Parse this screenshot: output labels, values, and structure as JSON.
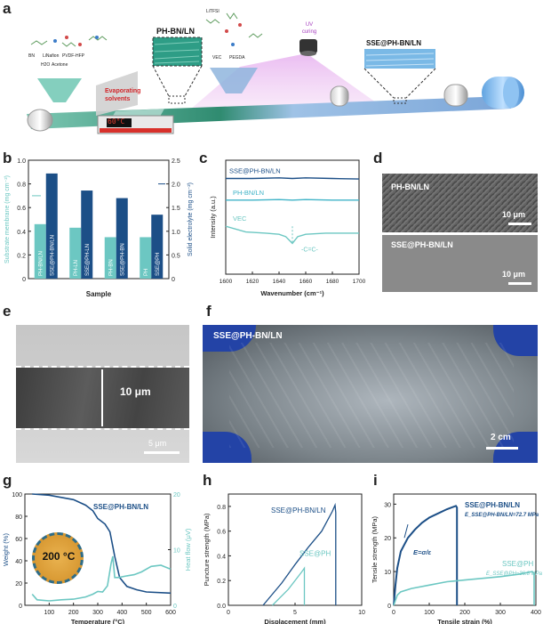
{
  "panels": {
    "a": {
      "label": "a",
      "materials": [
        "BN",
        "LiNafion",
        "PVDF-HFP",
        "H2O",
        "Acetone"
      ],
      "step1": "Evaporating solvents",
      "temp_display": "60°C",
      "intermediate": "PH-BN/LN",
      "additives": [
        "LiTFSI",
        "VEC",
        "PEGDA"
      ],
      "uv": "UV curing",
      "product": "SSE@PH-BN/LN"
    },
    "b": {
      "label": "b"
    },
    "c": {
      "label": "c"
    },
    "d": {
      "label": "d",
      "top_label": "PH-BN/LN",
      "top_scale": "10 μm",
      "bottom_label": "SSE@PH-BN/LN",
      "bottom_scale": "10 μm"
    },
    "e": {
      "label": "e",
      "thickness": "10 μm",
      "scale": "5 μm"
    },
    "f": {
      "label": "f",
      "title": "SSE@PH-BN/LN",
      "scale": "2 cm"
    },
    "g": {
      "label": "g",
      "inset": "200 °C"
    },
    "h": {
      "label": "h"
    },
    "i": {
      "label": "i",
      "eq": "E=σ/ε"
    }
  },
  "chart_data": [
    {
      "panel": "b",
      "type": "bar",
      "xlabel": "Sample",
      "ylabel_left": "Substrate membrane (mg cm⁻²)",
      "ylabel_right": "Solid electrolyte (mg cm⁻²)",
      "ylim_left": [
        0,
        1.0
      ],
      "ylim_right": [
        0,
        2.5
      ],
      "yticks_left": [
        "0",
        "0.2",
        "0.4",
        "0.6",
        "0.8",
        "1.0"
      ],
      "yticks_right": [
        "0",
        "0.5",
        "1.0",
        "1.5",
        "2.0",
        "2.5"
      ],
      "categories": [
        "PH-BN/LN",
        "PH-LN",
        "PH-BN",
        "PH"
      ],
      "series": [
        {
          "axis": "left",
          "color": "#6cc7c2",
          "values": [
            0.46,
            0.43,
            0.35,
            0.35
          ],
          "labels": [
            "PH-BN/LN",
            "PH-LN",
            "PH-BN",
            "PH"
          ]
        },
        {
          "axis": "right",
          "color": "#1c4f87",
          "values": [
            2.22,
            1.86,
            1.7,
            1.35
          ],
          "labels": [
            "SSE@PH-BN/LN",
            "SSE@PH-LN",
            "SSE@PH-BN",
            "SSE@PH"
          ]
        }
      ]
    },
    {
      "panel": "c",
      "type": "line",
      "xlabel": "Wavenumber (cm⁻¹)",
      "ylabel": "Intensity (a.u.)",
      "xlim": [
        1600,
        1700
      ],
      "xticks": [
        "1600",
        "1620",
        "1640",
        "1660",
        "1680",
        "1700"
      ],
      "annotation": "-C=C-",
      "series": [
        {
          "name": "SSE@PH-BN/LN",
          "color": "#1c4f87",
          "x": [
            1600,
            1620,
            1640,
            1650,
            1660,
            1680,
            1700
          ],
          "y": [
            0.84,
            0.84,
            0.845,
            0.84,
            0.845,
            0.84,
            0.835
          ]
        },
        {
          "name": "PH-BN/LN",
          "color": "#3fb3c7",
          "x": [
            1600,
            1620,
            1640,
            1650,
            1660,
            1680,
            1700
          ],
          "y": [
            0.65,
            0.65,
            0.655,
            0.65,
            0.655,
            0.65,
            0.65
          ]
        },
        {
          "name": "VEC",
          "color": "#6cc7c2",
          "x": [
            1600,
            1615,
            1630,
            1640,
            1645,
            1650,
            1654,
            1660,
            1675,
            1690,
            1700
          ],
          "y": [
            0.42,
            0.37,
            0.36,
            0.35,
            0.33,
            0.27,
            0.33,
            0.35,
            0.36,
            0.36,
            0.36
          ]
        }
      ]
    },
    {
      "panel": "g",
      "type": "line",
      "xlabel": "Temperature (°C)",
      "ylabel_left": "Weight (%)",
      "ylabel_right": "Heat flow (μV)",
      "xlim": [
        0,
        600
      ],
      "ylim_left": [
        0,
        100
      ],
      "ylim_right": [
        0,
        20
      ],
      "xticks": [
        "100",
        "200",
        "300",
        "400",
        "500",
        "600"
      ],
      "yticks_left": [
        "0",
        "20",
        "40",
        "60",
        "80",
        "100"
      ],
      "yticks_right": [
        "0",
        "10",
        "20"
      ],
      "series": [
        {
          "name": "SSE@PH-BN/LN",
          "axis": "left",
          "color": "#1c4f87",
          "x": [
            30,
            100,
            200,
            250,
            280,
            300,
            330,
            350,
            370,
            390,
            420,
            460,
            500,
            600
          ],
          "y": [
            100,
            99,
            95,
            90,
            85,
            78,
            73,
            66,
            44,
            25,
            17,
            14,
            12,
            11
          ]
        },
        {
          "axis": "right",
          "color": "#6cc7c2",
          "x": [
            30,
            50,
            100,
            150,
            200,
            250,
            280,
            300,
            320,
            340,
            355,
            362,
            370,
            385,
            420,
            450,
            480,
            520,
            560,
            600
          ],
          "y": [
            2.0,
            1.0,
            0.8,
            1.0,
            1.1,
            1.5,
            2.0,
            2.5,
            2.4,
            3.5,
            7.5,
            8.8,
            5.0,
            5.0,
            5.3,
            5.5,
            6.0,
            7.0,
            7.2,
            6.5
          ]
        }
      ]
    },
    {
      "panel": "h",
      "type": "line",
      "xlabel": "Displacement (mm)",
      "ylabel": "Puncture strength (MPa)",
      "xlim": [
        0,
        10
      ],
      "ylim": [
        0,
        0.9
      ],
      "xticks": [
        "0",
        "5",
        "10"
      ],
      "yticks": [
        "0.0",
        "0.2",
        "0.4",
        "0.6",
        "0.8"
      ],
      "series": [
        {
          "name": "SSE@PH-BN/LN",
          "color": "#1c4f87",
          "x": [
            2.6,
            4.0,
            5.0,
            6.0,
            7.0,
            7.8,
            8.0,
            8.05,
            8.05
          ],
          "y": [
            0.0,
            0.18,
            0.33,
            0.47,
            0.6,
            0.76,
            0.81,
            0.75,
            0.0
          ]
        },
        {
          "name": "SSE@PH",
          "color": "#6cc7c2",
          "x": [
            3.3,
            4.5,
            5.5,
            5.7,
            5.7
          ],
          "y": [
            0.0,
            0.13,
            0.27,
            0.3,
            0.0
          ]
        }
      ]
    },
    {
      "panel": "i",
      "type": "line",
      "xlabel": "Tensile strain (%)",
      "ylabel": "Tensile strength (MPa)",
      "xlim": [
        0,
        400
      ],
      "ylim": [
        0,
        33
      ],
      "xticks": [
        "0",
        "100",
        "200",
        "300",
        "400"
      ],
      "yticks": [
        "0",
        "10",
        "20",
        "30"
      ],
      "series": [
        {
          "name": "SSE@PH-BN/LN",
          "modulus": "E_SSE@PH-BN/LN=72.7 MPa",
          "color": "#1c4f87",
          "x": [
            0,
            5,
            10,
            20,
            40,
            60,
            80,
            100,
            120,
            150,
            175,
            178,
            178
          ],
          "y": [
            0,
            6,
            11,
            16,
            20,
            22.5,
            24.5,
            26,
            27,
            28.5,
            29.5,
            29,
            0
          ]
        },
        {
          "name": "SSE@PH",
          "modulus": "E_SSE@PH=36.8 MPa",
          "color": "#6cc7c2",
          "x": [
            0,
            10,
            20,
            50,
            100,
            150,
            200,
            250,
            300,
            350,
            390,
            395,
            395
          ],
          "y": [
            0,
            3,
            4,
            5,
            6,
            7,
            7.5,
            8,
            8.5,
            9.2,
            10,
            9.5,
            0
          ]
        }
      ]
    }
  ]
}
